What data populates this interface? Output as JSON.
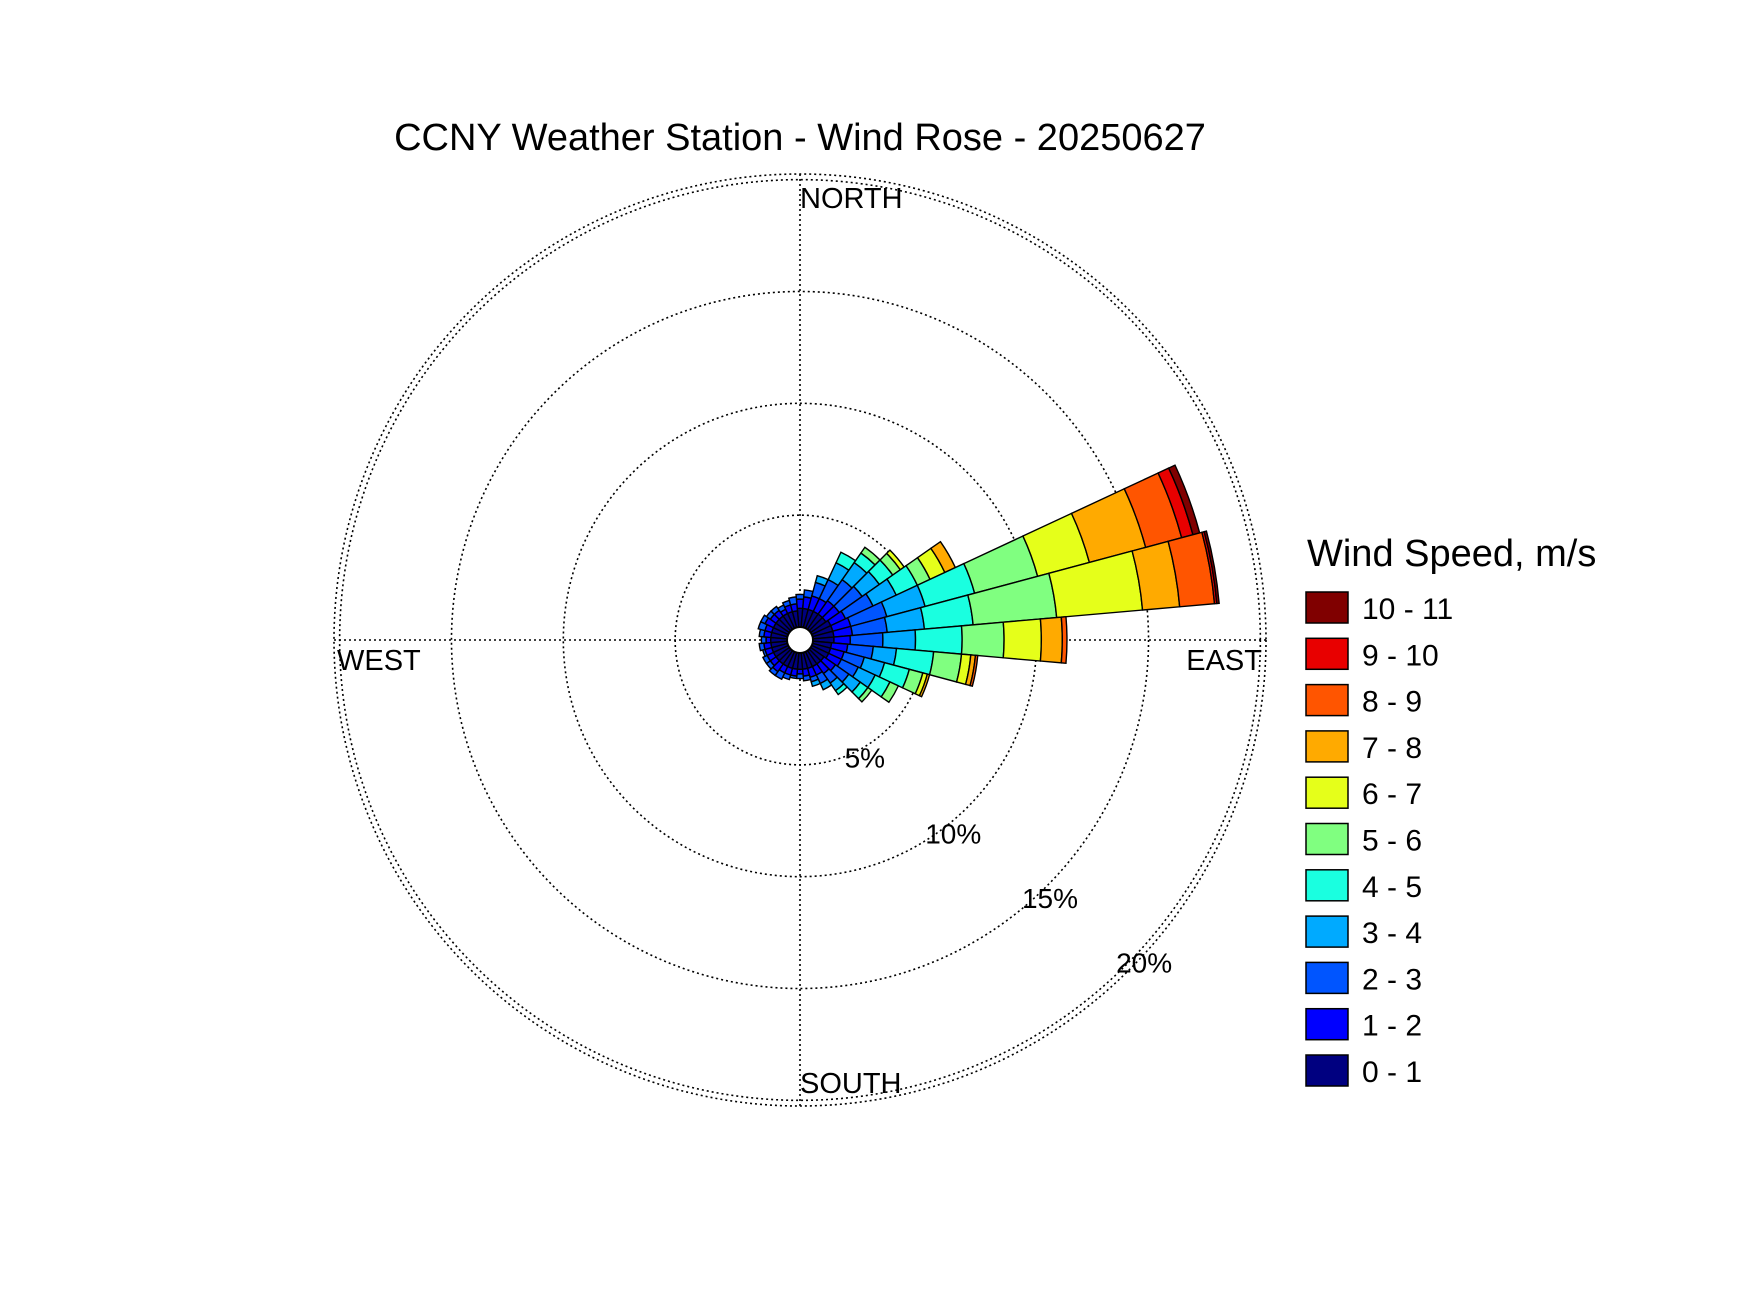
{
  "chart_data": {
    "type": "windrose",
    "title": "CCNY Weather Station - Wind Rose - 20250627",
    "direction_labels": {
      "north": "NORTH",
      "east": "EAST",
      "south": "SOUTH",
      "west": "WEST"
    },
    "radial_ticks": [
      5,
      10,
      15,
      20
    ],
    "radial_tick_labels": [
      "5%",
      "10%",
      "15%",
      "20%"
    ],
    "radial_max": 20,
    "grid": true,
    "legend_title": "Wind Speed, m/s",
    "legend_position": "right",
    "speed_bins": [
      "0 - 1",
      "1 - 2",
      "2 - 3",
      "3 - 4",
      "4 - 5",
      "5 - 6",
      "6 - 7",
      "7 - 8",
      "8 - 9",
      "9 - 10",
      "10 - 11"
    ],
    "bin_colors": [
      "#000080",
      "#0000ff",
      "#0055ff",
      "#00aaff",
      "#1affe0",
      "#80ff80",
      "#e5ff1a",
      "#ffaa00",
      "#ff5500",
      "#e80000",
      "#800000"
    ],
    "sector_count": 36,
    "sectors": [
      {
        "direction": 0,
        "cumulative": [
          0.8,
          1.2,
          1.4
        ]
      },
      {
        "direction": 10,
        "cumulative": [
          0.8,
          1.3,
          1.6
        ]
      },
      {
        "direction": 20,
        "cumulative": [
          0.8,
          1.4,
          2.0,
          2.3
        ]
      },
      {
        "direction": 30,
        "cumulative": [
          0.8,
          1.4,
          2.3,
          3.1,
          3.6
        ]
      },
      {
        "direction": 40,
        "cumulative": [
          0.8,
          1.5,
          2.6,
          3.5,
          4.0,
          4.3
        ]
      },
      {
        "direction": 50,
        "cumulative": [
          0.8,
          1.5,
          2.7,
          3.6,
          4.3,
          4.7,
          4.9
        ]
      },
      {
        "direction": 60,
        "cumulative": [
          0.9,
          1.6,
          2.9,
          4.0,
          5.0,
          5.6,
          6.3,
          6.8
        ]
      },
      {
        "direction": 70,
        "cumulative": [
          0.9,
          1.7,
          3.3,
          5.0,
          7.2,
          10.0,
          12.3,
          14.8,
          16.4,
          16.9,
          17.2
        ]
      },
      {
        "direction": 80,
        "cumulative": [
          0.9,
          1.7,
          3.2,
          4.8,
          6.9,
          10.5,
          14.2,
          15.8,
          17.3,
          17.4,
          17.5
        ]
      },
      {
        "direction": 90,
        "cumulative": [
          0.9,
          1.6,
          3.0,
          4.4,
          6.4,
          8.2,
          9.8,
          10.7,
          10.9
        ]
      },
      {
        "direction": 100,
        "cumulative": [
          0.8,
          1.5,
          2.6,
          3.6,
          5.2,
          6.4,
          6.8,
          7.0,
          7.1
        ]
      },
      {
        "direction": 110,
        "cumulative": [
          0.8,
          1.4,
          2.3,
          3.2,
          4.3,
          4.9,
          5.1,
          5.2
        ]
      },
      {
        "direction": 120,
        "cumulative": [
          0.8,
          1.4,
          2.2,
          3.0,
          3.7,
          4.1
        ]
      },
      {
        "direction": 130,
        "cumulative": [
          0.7,
          1.3,
          2.0,
          2.6,
          3.0,
          3.2
        ]
      },
      {
        "direction": 140,
        "cumulative": [
          0.7,
          1.2,
          1.7,
          2.1,
          2.3
        ]
      },
      {
        "direction": 150,
        "cumulative": [
          0.7,
          1.1,
          1.5,
          1.8
        ]
      },
      {
        "direction": 160,
        "cumulative": [
          0.7,
          1.1,
          1.3,
          1.5
        ]
      },
      {
        "direction": 170,
        "cumulative": [
          0.7,
          1.0,
          1.2
        ]
      },
      {
        "direction": 180,
        "cumulative": [
          0.7,
          0.9,
          1.1
        ]
      },
      {
        "direction": 190,
        "cumulative": [
          0.7,
          1.0,
          1.1
        ]
      },
      {
        "direction": 200,
        "cumulative": [
          0.7,
          1.0,
          1.2
        ]
      },
      {
        "direction": 210,
        "cumulative": [
          0.7,
          1.0,
          1.3
        ]
      },
      {
        "direction": 220,
        "cumulative": [
          0.7,
          1.1,
          1.3
        ]
      },
      {
        "direction": 230,
        "cumulative": [
          0.7,
          1.0,
          1.2
        ]
      },
      {
        "direction": 240,
        "cumulative": [
          0.7,
          1.0,
          1.2
        ]
      },
      {
        "direction": 250,
        "cumulative": [
          0.7,
          1.0,
          1.1
        ]
      },
      {
        "direction": 260,
        "cumulative": [
          0.7,
          1.0,
          1.2
        ]
      },
      {
        "direction": 270,
        "cumulative": [
          0.7,
          0.9,
          1.1
        ]
      },
      {
        "direction": 280,
        "cumulative": [
          0.7,
          1.0,
          1.2
        ]
      },
      {
        "direction": 290,
        "cumulative": [
          0.7,
          1.0,
          1.3
        ]
      },
      {
        "direction": 300,
        "cumulative": [
          0.7,
          1.1,
          1.3
        ]
      },
      {
        "direction": 310,
        "cumulative": [
          0.7,
          1.0,
          1.2
        ]
      },
      {
        "direction": 320,
        "cumulative": [
          0.7,
          1.0,
          1.2
        ]
      },
      {
        "direction": 330,
        "cumulative": [
          0.7,
          0.9,
          1.1
        ]
      },
      {
        "direction": 340,
        "cumulative": [
          0.7,
          1.0,
          1.2
        ]
      },
      {
        "direction": 350,
        "cumulative": [
          0.7,
          1.0,
          1.3
        ]
      }
    ]
  }
}
